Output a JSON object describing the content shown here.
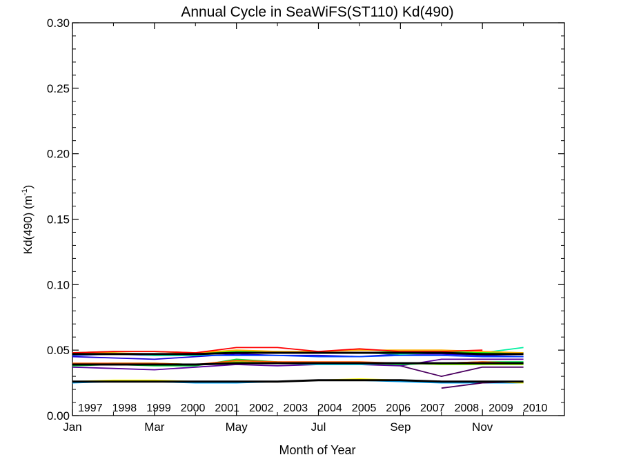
{
  "chart_data": {
    "type": "line",
    "title": "Annual Cycle in SeaWiFS(ST110) Kd(490)",
    "xlabel": "Month of Year",
    "ylabel_main": "Kd(490) (m",
    "ylabel_sup": "-1",
    "ylabel_close": ")",
    "xlim": [
      1,
      13
    ],
    "ylim": [
      0,
      0.3
    ],
    "x_ticks": [
      {
        "value": 1,
        "label": "Jan"
      },
      {
        "value": 3,
        "label": "Mar"
      },
      {
        "value": 5,
        "label": "May"
      },
      {
        "value": 7,
        "label": "Jul"
      },
      {
        "value": 9,
        "label": "Sep"
      },
      {
        "value": 11,
        "label": "Nov"
      }
    ],
    "y_ticks": [
      {
        "value": 0.0,
        "label": "0.00"
      },
      {
        "value": 0.05,
        "label": "0.05"
      },
      {
        "value": 0.1,
        "label": "0.10"
      },
      {
        "value": 0.15,
        "label": "0.15"
      },
      {
        "value": 0.2,
        "label": "0.20"
      },
      {
        "value": 0.25,
        "label": "0.25"
      },
      {
        "value": 0.3,
        "label": "0.30"
      }
    ],
    "x": [
      1,
      2,
      3,
      4,
      5,
      6,
      7,
      8,
      9,
      10,
      11,
      12
    ],
    "series": [
      {
        "name": "1997",
        "color": "#4b0060",
        "values": [
          null,
          null,
          null,
          null,
          null,
          null,
          null,
          null,
          0.038,
          0.03,
          0.037,
          0.037
        ]
      },
      {
        "name": "1998",
        "color": "#5a00a0",
        "values": [
          0.037,
          0.036,
          0.035,
          0.037,
          0.039,
          0.038,
          0.039,
          0.039,
          0.038,
          0.043,
          0.043,
          0.043
        ]
      },
      {
        "name": "1999",
        "color": "#1e00d8",
        "values": [
          0.045,
          0.044,
          0.043,
          0.045,
          0.047,
          0.046,
          0.046,
          0.045,
          0.047,
          0.047,
          0.046,
          0.045
        ]
      },
      {
        "name": "2000",
        "color": "#0040ff",
        "values": [
          0.046,
          0.047,
          0.046,
          0.046,
          0.046,
          0.046,
          0.045,
          0.045,
          0.046,
          0.046,
          0.045,
          0.045
        ]
      },
      {
        "name": "2001",
        "color": "#00a8ff",
        "values": [
          0.025,
          0.026,
          0.026,
          0.025,
          0.025,
          0.026,
          0.027,
          0.027,
          0.026,
          0.025,
          0.025,
          0.025
        ]
      },
      {
        "name": "2002",
        "color": "#00e8ff",
        "values": [
          0.039,
          0.04,
          0.04,
          0.039,
          0.04,
          0.04,
          0.039,
          0.039,
          0.04,
          0.039,
          0.039,
          0.04
        ]
      },
      {
        "name": "2003",
        "color": "#00f0a0",
        "values": [
          0.047,
          0.048,
          0.046,
          0.046,
          0.049,
          0.048,
          0.048,
          0.048,
          0.047,
          0.048,
          0.048,
          0.052
        ]
      },
      {
        "name": "2004",
        "color": "#00e040",
        "values": [
          0.038,
          0.039,
          0.038,
          0.038,
          0.043,
          0.041,
          0.04,
          0.04,
          0.039,
          0.04,
          0.041,
          0.041
        ]
      },
      {
        "name": "2005",
        "color": "#20ff00",
        "values": [
          0.048,
          0.049,
          0.049,
          0.048,
          0.049,
          0.049,
          0.048,
          0.048,
          0.049,
          0.049,
          0.048,
          0.048
        ]
      },
      {
        "name": "2006",
        "color": "#90ff00",
        "values": [
          0.039,
          0.04,
          0.04,
          0.039,
          0.041,
          0.04,
          0.04,
          0.04,
          0.04,
          0.039,
          0.039,
          0.039
        ]
      },
      {
        "name": "2007",
        "color": "#ffff00",
        "values": [
          0.026,
          0.027,
          0.027,
          0.026,
          0.026,
          0.026,
          0.027,
          0.028,
          0.027,
          0.026,
          0.026,
          0.025
        ]
      },
      {
        "name": "2008",
        "color": "#ffb000",
        "values": [
          0.048,
          0.048,
          0.047,
          0.048,
          0.05,
          0.049,
          0.049,
          0.05,
          0.05,
          0.05,
          0.049,
          0.048
        ]
      },
      {
        "name": "2009",
        "color": "#ff5a00",
        "values": [
          0.04,
          0.04,
          0.04,
          0.039,
          0.042,
          0.041,
          0.041,
          0.041,
          0.04,
          0.04,
          0.041,
          0.04
        ]
      },
      {
        "name": "2010",
        "color": "#ff0000",
        "values": [
          0.048,
          0.049,
          0.049,
          0.048,
          0.052,
          0.052,
          0.049,
          0.051,
          0.049,
          0.049,
          0.05,
          null
        ]
      },
      {
        "name": "",
        "color": "#4b0060",
        "values": [
          null,
          null,
          null,
          null,
          null,
          null,
          null,
          null,
          null,
          0.021,
          0.025,
          0.026
        ]
      },
      {
        "name": "",
        "color": "#000000",
        "width": 3,
        "values": [
          0.047,
          0.047,
          0.047,
          0.047,
          0.048,
          0.048,
          0.048,
          0.048,
          0.048,
          0.048,
          0.047,
          0.047
        ]
      },
      {
        "name": "",
        "color": "#000000",
        "width": 3,
        "values": [
          0.039,
          0.039,
          0.039,
          0.039,
          0.04,
          0.04,
          0.04,
          0.04,
          0.04,
          0.04,
          0.04,
          0.04
        ]
      },
      {
        "name": "",
        "color": "#000000",
        "width": 3,
        "values": [
          0.026,
          0.026,
          0.026,
          0.026,
          0.026,
          0.026,
          0.027,
          0.027,
          0.027,
          0.026,
          0.026,
          0.026
        ]
      }
    ],
    "legend_placement": "bottom",
    "grid": false
  }
}
